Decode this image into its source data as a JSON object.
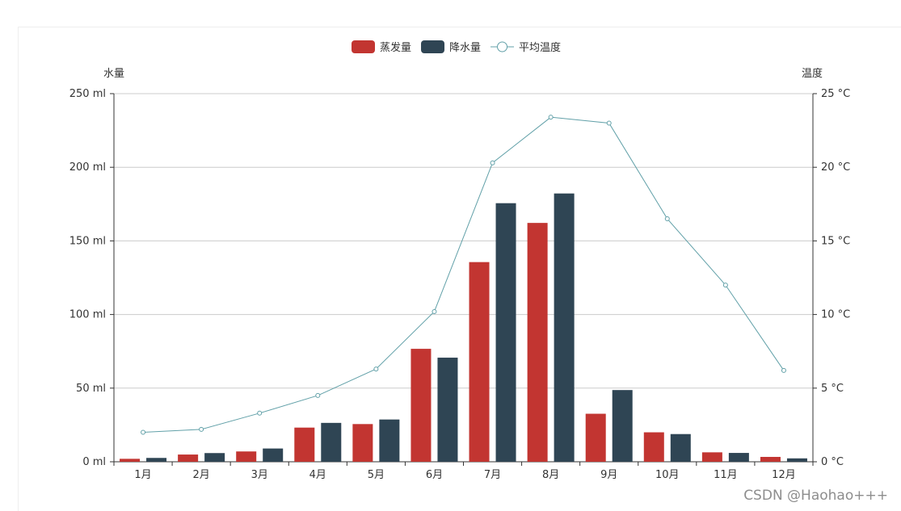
{
  "chart_data": {
    "type": "bar",
    "categories": [
      "1月",
      "2月",
      "3月",
      "4月",
      "5月",
      "6月",
      "7月",
      "8月",
      "9月",
      "10月",
      "11月",
      "12月"
    ],
    "series": [
      {
        "name": "蒸发量",
        "type": "bar",
        "axis": "left",
        "color": "#c23531",
        "values": [
          2.0,
          4.9,
          7.0,
          23.2,
          25.6,
          76.7,
          135.6,
          162.2,
          32.6,
          20.0,
          6.4,
          3.3
        ]
      },
      {
        "name": "降水量",
        "type": "bar",
        "axis": "left",
        "color": "#2f4554",
        "values": [
          2.6,
          5.9,
          9.0,
          26.4,
          28.7,
          70.7,
          175.6,
          182.2,
          48.7,
          18.8,
          6.0,
          2.3
        ]
      },
      {
        "name": "平均温度",
        "type": "line",
        "axis": "right",
        "color": "#61a0a8",
        "values": [
          2.0,
          2.2,
          3.3,
          4.5,
          6.3,
          10.2,
          20.3,
          23.4,
          23.0,
          16.5,
          12.0,
          6.2
        ]
      }
    ],
    "y_left": {
      "name": "水量",
      "min": 0,
      "max": 250,
      "interval": 50,
      "unit": "ml",
      "ticks": [
        "0 ml",
        "50 ml",
        "100 ml",
        "150 ml",
        "200 ml",
        "250 ml"
      ]
    },
    "y_right": {
      "name": "温度",
      "min": 0,
      "max": 25,
      "interval": 5,
      "unit": "°C",
      "ticks": [
        "0 °C",
        "5 °C",
        "10 °C",
        "15 °C",
        "20 °C",
        "25 °C"
      ]
    },
    "grid": true,
    "legend_position": "top-center"
  },
  "watermark": "CSDN @Haohao+++"
}
